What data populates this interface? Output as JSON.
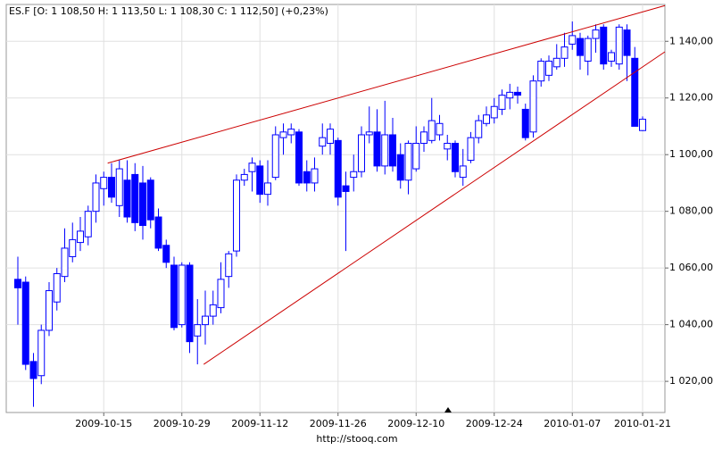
{
  "chart_data": {
    "type": "candlestick",
    "legend_text": "ES.F [O: 1 108,50  H: 1 113,50  L: 1 108,30  C: 1 112,50] (+0,23%)",
    "source": "http://stooq.com",
    "color": "#0000ff",
    "up_fill": "#ffffff",
    "grid": true,
    "categories": [
      null,
      null,
      null,
      null,
      null,
      null,
      null,
      null,
      null,
      null,
      null,
      "2009-10-15",
      null,
      null,
      null,
      null,
      null,
      null,
      null,
      null,
      null,
      "2009-10-29",
      null,
      null,
      null,
      null,
      null,
      null,
      null,
      null,
      null,
      "2009-11-12",
      null,
      null,
      null,
      null,
      null,
      null,
      null,
      null,
      null,
      "2009-11-26",
      null,
      null,
      null,
      null,
      null,
      null,
      null,
      null,
      null,
      "2009-12-10",
      null,
      null,
      null,
      null,
      null,
      null,
      null,
      null,
      null,
      "2009-12-24",
      null,
      null,
      null,
      null,
      null,
      null,
      null,
      null,
      null,
      "2010-01-07",
      null,
      null,
      null,
      null,
      null,
      null,
      null,
      null,
      "2010-01-21"
    ],
    "open": [
      1056,
      1055,
      1027,
      1022,
      1038,
      1048,
      1057,
      1064,
      1069,
      1071,
      1080,
      1088,
      1092,
      1082,
      1091,
      1093,
      1090,
      1091,
      1078,
      1068,
      1061,
      1040,
      1061,
      1036,
      1040,
      1043,
      1046,
      1057,
      1066,
      1091,
      1094,
      1096,
      1086,
      1092,
      1106,
      1107,
      1108,
      1094,
      1090,
      1103,
      1104,
      1105,
      1089,
      1092,
      1094,
      1107,
      1108,
      1096,
      1107,
      1100,
      1091,
      1095,
      1104,
      1105,
      1107,
      1102,
      1104,
      1092,
      1098,
      1106,
      1111,
      1113,
      1116,
      1120,
      1122,
      1116,
      1108,
      1126,
      1128,
      1131,
      1134,
      1139,
      1141,
      1133,
      1141,
      1145,
      1133,
      1132,
      1144,
      1134,
      1108.5
    ],
    "high": [
      1064,
      1057,
      1030,
      1040,
      1055,
      1060,
      1074,
      1076,
      1078,
      1082,
      1093,
      1094,
      1097,
      1098,
      1098,
      1097,
      1096,
      1092,
      1081,
      1070,
      1064,
      1062,
      1062,
      1049,
      1052,
      1052,
      1062,
      1066,
      1093,
      1095,
      1099,
      1098,
      1098,
      1110,
      1111,
      1111,
      1109,
      1098,
      1099,
      1111,
      1111,
      1106,
      1094,
      1100,
      1110,
      1117,
      1116,
      1119,
      1113,
      1104,
      1105,
      1110,
      1110,
      1120,
      1114,
      1107,
      1105,
      1102,
      1108,
      1114,
      1117,
      1120,
      1123,
      1125,
      1124,
      1118,
      1128,
      1134,
      1135,
      1139,
      1143,
      1147,
      1143,
      1142,
      1146,
      1146,
      1137,
      1146,
      1146,
      1138,
      1113.5
    ],
    "low": [
      1040,
      1024,
      1011,
      1019,
      1036,
      1045,
      1055,
      1062,
      1066,
      1068,
      1076,
      1082,
      1083,
      1078,
      1076,
      1073,
      1070,
      1074,
      1066,
      1060,
      1038,
      1039,
      1030,
      1026,
      1033,
      1040,
      1044,
      1053,
      1064,
      1089,
      1087,
      1083,
      1082,
      1091,
      1100,
      1104,
      1089,
      1087,
      1087,
      1100,
      1100,
      1082,
      1066,
      1087,
      1092,
      1104,
      1094,
      1093,
      1094,
      1088,
      1086,
      1094,
      1101,
      1104,
      1105,
      1098,
      1092,
      1089,
      1097,
      1104,
      1110,
      1111,
      1114,
      1116,
      1118,
      1105,
      1106,
      1124,
      1126,
      1130,
      1131,
      1137,
      1130,
      1128,
      1136,
      1130,
      1131,
      1130,
      1126,
      1110,
      1108.3
    ],
    "close": [
      1053,
      1026,
      1021,
      1038,
      1052,
      1058,
      1067,
      1070,
      1073,
      1080,
      1090,
      1092,
      1085,
      1095,
      1078,
      1076,
      1075,
      1077,
      1067,
      1062,
      1039,
      1061,
      1034,
      1040,
      1043,
      1047,
      1056,
      1065,
      1091,
      1093,
      1097,
      1086,
      1090,
      1107,
      1108,
      1109,
      1090,
      1090,
      1095,
      1106,
      1109,
      1085,
      1087,
      1094,
      1107,
      1108,
      1096,
      1107,
      1096,
      1091,
      1104,
      1104,
      1108,
      1112,
      1111,
      1104,
      1094,
      1096,
      1106,
      1112,
      1114,
      1117,
      1121,
      1122,
      1121,
      1106,
      1126,
      1133,
      1133,
      1134,
      1138,
      1142,
      1135,
      1141,
      1144,
      1132,
      1136,
      1145,
      1135,
      1110,
      1112.5
    ],
    "ylim": [
      1009,
      1153
    ],
    "yticks": [
      {
        "value": 1020,
        "label": "1 020,00"
      },
      {
        "value": 1040,
        "label": "1 040,00"
      },
      {
        "value": 1060,
        "label": "1 060,00"
      },
      {
        "value": 1080,
        "label": "1 080,00"
      },
      {
        "value": 1100,
        "label": "1 100,00"
      },
      {
        "value": 1120,
        "label": "1 120,00"
      },
      {
        "value": 1140,
        "label": "1 140,00"
      }
    ],
    "trendlines": [
      {
        "color": "#cc0000",
        "start": [
          11.5,
          1097
        ],
        "end": [
          82.86,
          1152.6
        ]
      },
      {
        "color": "#cc0000",
        "start": [
          23.8,
          1026
        ],
        "end": [
          82.86,
          1136.3
        ]
      }
    ]
  }
}
